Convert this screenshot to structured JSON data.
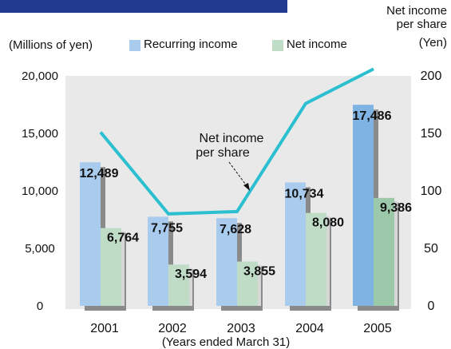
{
  "colors": {
    "recurring": "#a9ccee",
    "recurring_highlight": "#7fb3e4",
    "net": "#bfdcc7",
    "net_highlight": "#9cc9a9",
    "line": "#2bbfd0",
    "plot_bg": "#e9e9e9",
    "shadow": "#8a8a8a",
    "header_band": "#1f3a8f"
  },
  "chart_data": {
    "type": "bar",
    "categories": [
      "2001",
      "2002",
      "2003",
      "2004",
      "2005"
    ],
    "series": [
      {
        "name": "Recurring income",
        "values": [
          12489,
          7755,
          7628,
          10734,
          17486
        ]
      },
      {
        "name": "Net income",
        "values": [
          6764,
          3594,
          3855,
          8080,
          9386
        ]
      }
    ],
    "line_series": {
      "values": [
        151,
        80,
        82,
        176,
        206
      ],
      "axis": "right"
    },
    "data_labels": {
      "recurring": [
        "12,489",
        "7,755",
        "7,628",
        "10,734",
        "17,486"
      ],
      "net": [
        "6,764",
        "3,594",
        "3,855",
        "8,080",
        "9,386"
      ]
    },
    "ylabel_left": "(Millions of yen)",
    "ylabel_right_line1": "Net income",
    "ylabel_right_line2": "per share",
    "ylabel_right_line3": "(Yen)",
    "xlabel": "(Years ended March 31)",
    "ylim_left": [
      0,
      20000
    ],
    "ylim_right": [
      0,
      200
    ],
    "yticks_left": [
      "0",
      "5,000",
      "10,000",
      "15,000",
      "20,000"
    ],
    "yticks_right": [
      "0",
      "50",
      "100",
      "150",
      "200"
    ],
    "annotation_line1": "Net income",
    "annotation_line2": "per share",
    "legend": {
      "recurring": "Recurring income",
      "net": "Net income"
    },
    "legend_position": "top"
  }
}
